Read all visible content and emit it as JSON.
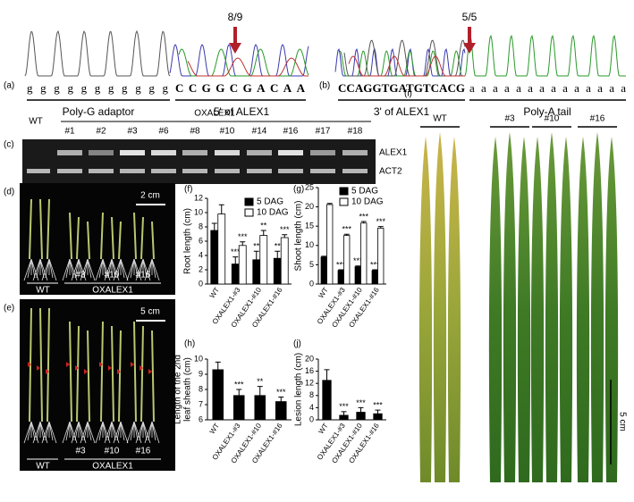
{
  "panel_labels": [
    "(a)",
    "(b)",
    "(c)",
    "(d)",
    "(e)",
    "(f)",
    "(g)",
    "(h)",
    "(i)",
    "(j)"
  ],
  "a": {
    "ratio": "8/9",
    "sequence_adaptor": "ggggggggggg",
    "sequence_gene": "CCGGCGACAA",
    "labels": [
      "Poly-G adaptor",
      "5' of ALEX1"
    ]
  },
  "b": {
    "ratio": "5/5",
    "sequence_gene": "CCAGGTGATGTCACG",
    "sequence_tail": "aaaaaaaaaaaaaa",
    "labels": [
      "3' of ALEX1",
      "Poly-A tail"
    ]
  },
  "c": {
    "control": "WT",
    "group": "OXALEX1",
    "lanes": [
      "#1",
      "#2",
      "#3",
      "#6",
      "#8",
      "#10",
      "#14",
      "#16",
      "#17",
      "#18"
    ],
    "genes": [
      "ALEX1",
      "ACT2"
    ]
  },
  "d": {
    "scale": "2 cm",
    "lines": [
      "#3",
      "#10",
      "#16"
    ],
    "groups": [
      "WT",
      "OXALEX1"
    ]
  },
  "e": {
    "scale": "5 cm",
    "lines": [
      "#3",
      "#10",
      "#16"
    ],
    "groups": [
      "WT",
      "OXALEX1"
    ]
  },
  "i": {
    "groups": [
      "WT",
      "#3",
      "#10",
      "#16"
    ],
    "scale": "5 cm"
  },
  "chart_data": [
    {
      "type": "bar",
      "ylabel": [
        "Root length (cm)"
      ],
      "categories": [
        "WT",
        "OXALEX1-#3",
        "OXALEX1-#10",
        "OXALEX1-#16"
      ],
      "series": [
        {
          "name": "5 DAG",
          "color": "#000000",
          "values": [
            7.5,
            2.8,
            3.4,
            3.6
          ],
          "errors": [
            1.0,
            1.0,
            1.2,
            1.0
          ],
          "annotations": [
            null,
            "***",
            "**",
            "**"
          ]
        },
        {
          "name": "10 DAG",
          "color": "#ffffff",
          "values": [
            9.8,
            5.4,
            6.8,
            6.5
          ],
          "errors": [
            1.3,
            0.5,
            0.7,
            0.4
          ],
          "annotations": [
            null,
            "***",
            "**",
            "***"
          ]
        }
      ],
      "ylim": [
        0,
        12
      ],
      "yticks": [
        0,
        2,
        4,
        6,
        8,
        10,
        12
      ],
      "legend": "upper-right"
    },
    {
      "type": "bar",
      "ylabel": [
        "Shoot length (cm)"
      ],
      "categories": [
        "WT",
        "OXALEX1-#3",
        "OXALEX1-#10",
        "OXALEX1-#16"
      ],
      "series": [
        {
          "name": "5 DAG",
          "color": "#000000",
          "values": [
            7.0,
            3.5,
            4.5,
            3.5
          ],
          "errors": [
            0.2,
            0.2,
            0.2,
            0.2
          ],
          "annotations": [
            null,
            "***",
            "***",
            "***"
          ]
        },
        {
          "name": "10 DAG",
          "color": "#ffffff",
          "values": [
            20.6,
            12.6,
            15.8,
            14.5
          ],
          "errors": [
            0.3,
            0.3,
            0.4,
            0.4
          ],
          "annotations": [
            null,
            "***",
            "***",
            "***"
          ]
        }
      ],
      "ylim": [
        0,
        25
      ],
      "yticks": [
        0,
        5,
        10,
        15,
        20,
        25
      ],
      "legend": "upper-right"
    },
    {
      "type": "bar",
      "ylabel": [
        "Length of the 2nd",
        "leaf sheath (cm)"
      ],
      "categories": [
        "WT",
        "OXALEX1-#3",
        "OXALEX1-#10",
        "OXALEX1-#16"
      ],
      "series": [
        {
          "color": "#000000",
          "values": [
            9.3,
            7.6,
            7.6,
            7.2
          ],
          "errors": [
            0.5,
            0.4,
            0.6,
            0.3
          ],
          "annotations": [
            null,
            "***",
            "**",
            "***"
          ]
        }
      ],
      "ylim": [
        6,
        10
      ],
      "yticks": [
        6,
        7,
        8,
        9,
        10
      ]
    },
    {
      "type": "bar",
      "ylabel": [
        "Lesion length (cm)"
      ],
      "categories": [
        "WT",
        "OXALEX1-#3",
        "OXALEX1-#10",
        "OXALEX1-#16"
      ],
      "series": [
        {
          "color": "#000000",
          "values": [
            13,
            1.5,
            2.5,
            2
          ],
          "errors": [
            3.5,
            1.2,
            1.5,
            1.2
          ],
          "annotations": [
            null,
            "***",
            "***",
            "***"
          ]
        }
      ],
      "ylim": [
        0,
        20
      ],
      "yticks": [
        0,
        4,
        8,
        12,
        16,
        20
      ]
    }
  ]
}
